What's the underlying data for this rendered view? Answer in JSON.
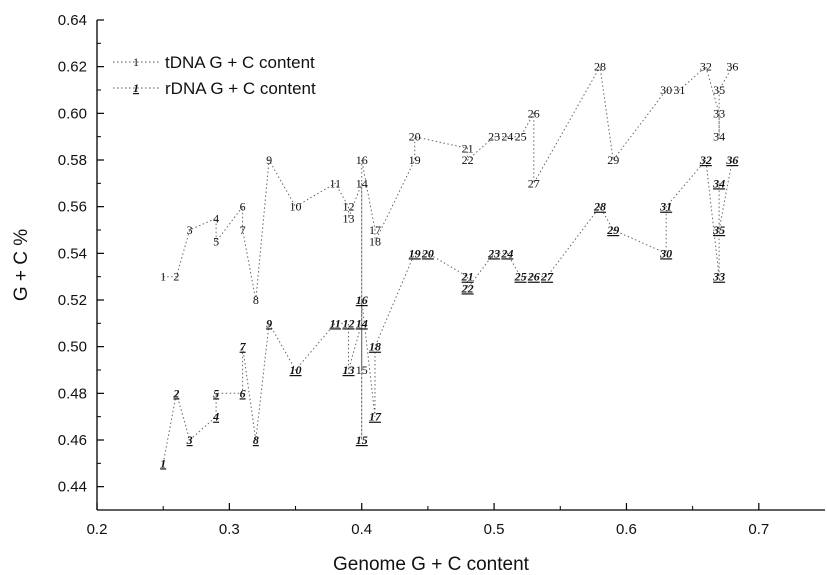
{
  "chart_data": {
    "type": "scatter",
    "xlabel": "Genome G + C content",
    "ylabel": "G + C %",
    "xlim": [
      0.2,
      0.75
    ],
    "ylim": [
      0.43,
      0.64
    ],
    "xticks": [
      "0.2",
      "0.3",
      "0.4",
      "0.5",
      "0.6",
      "0.7"
    ],
    "yticks": [
      "0.44",
      "0.46",
      "0.48",
      "0.50",
      "0.52",
      "0.54",
      "0.56",
      "0.58",
      "0.60",
      "0.62",
      "0.64"
    ],
    "grid": false,
    "legend_position": "top-left",
    "series": [
      {
        "name": "tDNA G + C content",
        "legend_marker": "1",
        "marker_style": "plain",
        "line": "dotted",
        "points": [
          {
            "label": "1",
            "x": 0.25,
            "y": 0.53
          },
          {
            "label": "2",
            "x": 0.26,
            "y": 0.53
          },
          {
            "label": "3",
            "x": 0.27,
            "y": 0.55
          },
          {
            "label": "4",
            "x": 0.29,
            "y": 0.555
          },
          {
            "label": "5",
            "x": 0.29,
            "y": 0.545
          },
          {
            "label": "6",
            "x": 0.31,
            "y": 0.56
          },
          {
            "label": "7",
            "x": 0.31,
            "y": 0.55
          },
          {
            "label": "8",
            "x": 0.32,
            "y": 0.52
          },
          {
            "label": "9",
            "x": 0.33,
            "y": 0.58
          },
          {
            "label": "10",
            "x": 0.35,
            "y": 0.56
          },
          {
            "label": "11",
            "x": 0.38,
            "y": 0.57
          },
          {
            "label": "12",
            "x": 0.39,
            "y": 0.56
          },
          {
            "label": "13",
            "x": 0.39,
            "y": 0.555
          },
          {
            "label": "14",
            "x": 0.4,
            "y": 0.57
          },
          {
            "label": "15",
            "x": 0.4,
            "y": 0.49
          },
          {
            "label": "16",
            "x": 0.4,
            "y": 0.58
          },
          {
            "label": "17",
            "x": 0.41,
            "y": 0.55
          },
          {
            "label": "18",
            "x": 0.41,
            "y": 0.545
          },
          {
            "label": "19",
            "x": 0.44,
            "y": 0.58
          },
          {
            "label": "20",
            "x": 0.44,
            "y": 0.59
          },
          {
            "label": "21",
            "x": 0.48,
            "y": 0.585
          },
          {
            "label": "22",
            "x": 0.48,
            "y": 0.58
          },
          {
            "label": "23",
            "x": 0.5,
            "y": 0.59
          },
          {
            "label": "24",
            "x": 0.51,
            "y": 0.59
          },
          {
            "label": "25",
            "x": 0.52,
            "y": 0.59
          },
          {
            "label": "26",
            "x": 0.53,
            "y": 0.6
          },
          {
            "label": "27",
            "x": 0.53,
            "y": 0.57
          },
          {
            "label": "28",
            "x": 0.58,
            "y": 0.62
          },
          {
            "label": "29",
            "x": 0.59,
            "y": 0.58
          },
          {
            "label": "30",
            "x": 0.63,
            "y": 0.61
          },
          {
            "label": "31",
            "x": 0.64,
            "y": 0.61
          },
          {
            "label": "32",
            "x": 0.66,
            "y": 0.62
          },
          {
            "label": "33",
            "x": 0.67,
            "y": 0.6
          },
          {
            "label": "34",
            "x": 0.67,
            "y": 0.59
          },
          {
            "label": "35",
            "x": 0.67,
            "y": 0.61
          },
          {
            "label": "36",
            "x": 0.68,
            "y": 0.62
          }
        ]
      },
      {
        "name": "rDNA G + C content",
        "legend_marker": "1",
        "marker_style": "underlined-italic",
        "line": "dotted",
        "points": [
          {
            "label": "1",
            "x": 0.25,
            "y": 0.45
          },
          {
            "label": "2",
            "x": 0.26,
            "y": 0.48
          },
          {
            "label": "3",
            "x": 0.27,
            "y": 0.46
          },
          {
            "label": "4",
            "x": 0.29,
            "y": 0.47
          },
          {
            "label": "5",
            "x": 0.29,
            "y": 0.48
          },
          {
            "label": "6",
            "x": 0.31,
            "y": 0.48
          },
          {
            "label": "7",
            "x": 0.31,
            "y": 0.5
          },
          {
            "label": "8",
            "x": 0.32,
            "y": 0.46
          },
          {
            "label": "9",
            "x": 0.33,
            "y": 0.51
          },
          {
            "label": "10",
            "x": 0.35,
            "y": 0.49
          },
          {
            "label": "11",
            "x": 0.38,
            "y": 0.51
          },
          {
            "label": "12",
            "x": 0.39,
            "y": 0.51
          },
          {
            "label": "13",
            "x": 0.39,
            "y": 0.49
          },
          {
            "label": "14",
            "x": 0.4,
            "y": 0.51
          },
          {
            "label": "15",
            "x": 0.4,
            "y": 0.46
          },
          {
            "label": "16",
            "x": 0.4,
            "y": 0.52
          },
          {
            "label": "17",
            "x": 0.41,
            "y": 0.47
          },
          {
            "label": "18",
            "x": 0.41,
            "y": 0.5
          },
          {
            "label": "19",
            "x": 0.44,
            "y": 0.54
          },
          {
            "label": "20",
            "x": 0.45,
            "y": 0.54
          },
          {
            "label": "21",
            "x": 0.48,
            "y": 0.53
          },
          {
            "label": "22",
            "x": 0.48,
            "y": 0.525
          },
          {
            "label": "23",
            "x": 0.5,
            "y": 0.54
          },
          {
            "label": "24",
            "x": 0.51,
            "y": 0.54
          },
          {
            "label": "25",
            "x": 0.52,
            "y": 0.53
          },
          {
            "label": "26",
            "x": 0.53,
            "y": 0.53
          },
          {
            "label": "27",
            "x": 0.54,
            "y": 0.53
          },
          {
            "label": "28",
            "x": 0.58,
            "y": 0.56
          },
          {
            "label": "29",
            "x": 0.59,
            "y": 0.55
          },
          {
            "label": "30",
            "x": 0.63,
            "y": 0.54
          },
          {
            "label": "31",
            "x": 0.63,
            "y": 0.56
          },
          {
            "label": "32",
            "x": 0.66,
            "y": 0.58
          },
          {
            "label": "33",
            "x": 0.67,
            "y": 0.53
          },
          {
            "label": "34",
            "x": 0.67,
            "y": 0.57
          },
          {
            "label": "35",
            "x": 0.67,
            "y": 0.55
          },
          {
            "label": "36",
            "x": 0.68,
            "y": 0.58
          }
        ]
      }
    ]
  }
}
